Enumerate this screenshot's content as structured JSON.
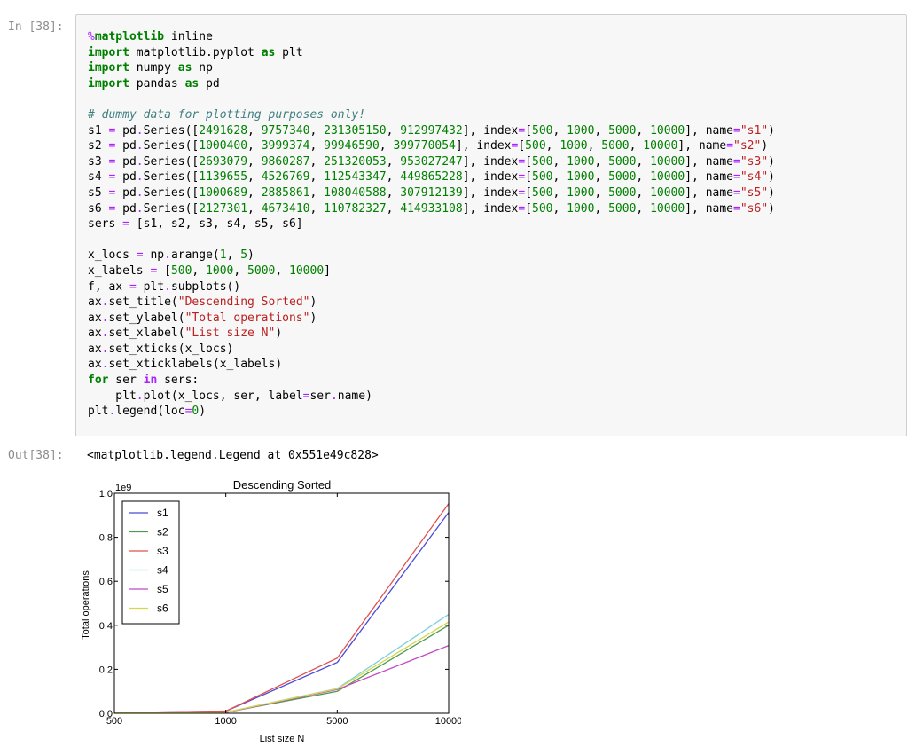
{
  "cell": {
    "in_prompt": "In [38]:",
    "out_prompt": "Out[38]:",
    "output_text": "<matplotlib.legend.Legend at 0x551e49c828>"
  },
  "code_lines": [
    [
      [
        "magic",
        "%"
      ],
      [
        "kw",
        "matplotlib"
      ],
      [
        "",
        " inline"
      ]
    ],
    [
      [
        "kw",
        "import"
      ],
      [
        "",
        " matplotlib.pyplot "
      ],
      [
        "kw",
        "as"
      ],
      [
        "",
        " plt"
      ]
    ],
    [
      [
        "kw",
        "import"
      ],
      [
        "",
        " numpy "
      ],
      [
        "kw",
        "as"
      ],
      [
        "",
        " np"
      ]
    ],
    [
      [
        "kw",
        "import"
      ],
      [
        "",
        " pandas "
      ],
      [
        "kw",
        "as"
      ],
      [
        "",
        " pd"
      ]
    ],
    [],
    [
      [
        "com",
        "# dummy data for plotting purposes only!"
      ]
    ],
    [
      [
        "",
        "s1 "
      ],
      [
        "op",
        "="
      ],
      [
        "",
        " pd"
      ],
      [
        "op",
        "."
      ],
      [
        "",
        "Series(["
      ],
      [
        "num",
        "2491628"
      ],
      [
        "",
        ", "
      ],
      [
        "num",
        "9757340"
      ],
      [
        "",
        ", "
      ],
      [
        "num",
        "231305150"
      ],
      [
        "",
        ", "
      ],
      [
        "num",
        "912997432"
      ],
      [
        "",
        "], index"
      ],
      [
        "op",
        "="
      ],
      [
        "",
        "["
      ],
      [
        "num",
        "500"
      ],
      [
        "",
        ", "
      ],
      [
        "num",
        "1000"
      ],
      [
        "",
        ", "
      ],
      [
        "num",
        "5000"
      ],
      [
        "",
        ", "
      ],
      [
        "num",
        "10000"
      ],
      [
        "",
        "], name"
      ],
      [
        "op",
        "="
      ],
      [
        "str",
        "\"s1\""
      ],
      [
        "",
        ")"
      ]
    ],
    [
      [
        "",
        "s2 "
      ],
      [
        "op",
        "="
      ],
      [
        "",
        " pd"
      ],
      [
        "op",
        "."
      ],
      [
        "",
        "Series(["
      ],
      [
        "num",
        "1000400"
      ],
      [
        "",
        ", "
      ],
      [
        "num",
        "3999374"
      ],
      [
        "",
        ", "
      ],
      [
        "num",
        "99946590"
      ],
      [
        "",
        ", "
      ],
      [
        "num",
        "399770054"
      ],
      [
        "",
        "], index"
      ],
      [
        "op",
        "="
      ],
      [
        "",
        "["
      ],
      [
        "num",
        "500"
      ],
      [
        "",
        ", "
      ],
      [
        "num",
        "1000"
      ],
      [
        "",
        ", "
      ],
      [
        "num",
        "5000"
      ],
      [
        "",
        ", "
      ],
      [
        "num",
        "10000"
      ],
      [
        "",
        "], name"
      ],
      [
        "op",
        "="
      ],
      [
        "str",
        "\"s2\""
      ],
      [
        "",
        ")"
      ]
    ],
    [
      [
        "",
        "s3 "
      ],
      [
        "op",
        "="
      ],
      [
        "",
        " pd"
      ],
      [
        "op",
        "."
      ],
      [
        "",
        "Series(["
      ],
      [
        "num",
        "2693079"
      ],
      [
        "",
        ", "
      ],
      [
        "num",
        "9860287"
      ],
      [
        "",
        ", "
      ],
      [
        "num",
        "251320053"
      ],
      [
        "",
        ", "
      ],
      [
        "num",
        "953027247"
      ],
      [
        "",
        "], index"
      ],
      [
        "op",
        "="
      ],
      [
        "",
        "["
      ],
      [
        "num",
        "500"
      ],
      [
        "",
        ", "
      ],
      [
        "num",
        "1000"
      ],
      [
        "",
        ", "
      ],
      [
        "num",
        "5000"
      ],
      [
        "",
        ", "
      ],
      [
        "num",
        "10000"
      ],
      [
        "",
        "], name"
      ],
      [
        "op",
        "="
      ],
      [
        "str",
        "\"s3\""
      ],
      [
        "",
        ")"
      ]
    ],
    [
      [
        "",
        "s4 "
      ],
      [
        "op",
        "="
      ],
      [
        "",
        " pd"
      ],
      [
        "op",
        "."
      ],
      [
        "",
        "Series(["
      ],
      [
        "num",
        "1139655"
      ],
      [
        "",
        ", "
      ],
      [
        "num",
        "4526769"
      ],
      [
        "",
        ", "
      ],
      [
        "num",
        "112543347"
      ],
      [
        "",
        ", "
      ],
      [
        "num",
        "449865228"
      ],
      [
        "",
        "], index"
      ],
      [
        "op",
        "="
      ],
      [
        "",
        "["
      ],
      [
        "num",
        "500"
      ],
      [
        "",
        ", "
      ],
      [
        "num",
        "1000"
      ],
      [
        "",
        ", "
      ],
      [
        "num",
        "5000"
      ],
      [
        "",
        ", "
      ],
      [
        "num",
        "10000"
      ],
      [
        "",
        "], name"
      ],
      [
        "op",
        "="
      ],
      [
        "str",
        "\"s4\""
      ],
      [
        "",
        ")"
      ]
    ],
    [
      [
        "",
        "s5 "
      ],
      [
        "op",
        "="
      ],
      [
        "",
        " pd"
      ],
      [
        "op",
        "."
      ],
      [
        "",
        "Series(["
      ],
      [
        "num",
        "1000689"
      ],
      [
        "",
        ", "
      ],
      [
        "num",
        "2885861"
      ],
      [
        "",
        ", "
      ],
      [
        "num",
        "108040588"
      ],
      [
        "",
        ", "
      ],
      [
        "num",
        "307912139"
      ],
      [
        "",
        "], index"
      ],
      [
        "op",
        "="
      ],
      [
        "",
        "["
      ],
      [
        "num",
        "500"
      ],
      [
        "",
        ", "
      ],
      [
        "num",
        "1000"
      ],
      [
        "",
        ", "
      ],
      [
        "num",
        "5000"
      ],
      [
        "",
        ", "
      ],
      [
        "num",
        "10000"
      ],
      [
        "",
        "], name"
      ],
      [
        "op",
        "="
      ],
      [
        "str",
        "\"s5\""
      ],
      [
        "",
        ")"
      ]
    ],
    [
      [
        "",
        "s6 "
      ],
      [
        "op",
        "="
      ],
      [
        "",
        " pd"
      ],
      [
        "op",
        "."
      ],
      [
        "",
        "Series(["
      ],
      [
        "num",
        "2127301"
      ],
      [
        "",
        ", "
      ],
      [
        "num",
        "4673410"
      ],
      [
        "",
        ", "
      ],
      [
        "num",
        "110782327"
      ],
      [
        "",
        ", "
      ],
      [
        "num",
        "414933108"
      ],
      [
        "",
        "], index"
      ],
      [
        "op",
        "="
      ],
      [
        "",
        "["
      ],
      [
        "num",
        "500"
      ],
      [
        "",
        ", "
      ],
      [
        "num",
        "1000"
      ],
      [
        "",
        ", "
      ],
      [
        "num",
        "5000"
      ],
      [
        "",
        ", "
      ],
      [
        "num",
        "10000"
      ],
      [
        "",
        "], name"
      ],
      [
        "op",
        "="
      ],
      [
        "str",
        "\"s6\""
      ],
      [
        "",
        ")"
      ]
    ],
    [
      [
        "",
        "sers "
      ],
      [
        "op",
        "="
      ],
      [
        "",
        " [s1, s2, s3, s4, s5, s6]"
      ]
    ],
    [],
    [
      [
        "",
        "x_locs "
      ],
      [
        "op",
        "="
      ],
      [
        "",
        " np"
      ],
      [
        "op",
        "."
      ],
      [
        "",
        "arange("
      ],
      [
        "num",
        "1"
      ],
      [
        "",
        ", "
      ],
      [
        "num",
        "5"
      ],
      [
        "",
        ")"
      ]
    ],
    [
      [
        "",
        "x_labels "
      ],
      [
        "op",
        "="
      ],
      [
        "",
        " ["
      ],
      [
        "num",
        "500"
      ],
      [
        "",
        ", "
      ],
      [
        "num",
        "1000"
      ],
      [
        "",
        ", "
      ],
      [
        "num",
        "5000"
      ],
      [
        "",
        ", "
      ],
      [
        "num",
        "10000"
      ],
      [
        "",
        "]"
      ]
    ],
    [
      [
        "",
        "f, ax "
      ],
      [
        "op",
        "="
      ],
      [
        "",
        " plt"
      ],
      [
        "op",
        "."
      ],
      [
        "",
        "subplots()"
      ]
    ],
    [
      [
        "",
        "ax"
      ],
      [
        "op",
        "."
      ],
      [
        "",
        "set_title("
      ],
      [
        "str",
        "\"Descending Sorted\""
      ],
      [
        "",
        ")"
      ]
    ],
    [
      [
        "",
        "ax"
      ],
      [
        "op",
        "."
      ],
      [
        "",
        "set_ylabel("
      ],
      [
        "str",
        "\"Total operations\""
      ],
      [
        "",
        ")"
      ]
    ],
    [
      [
        "",
        "ax"
      ],
      [
        "op",
        "."
      ],
      [
        "",
        "set_xlabel("
      ],
      [
        "str",
        "\"List size N\""
      ],
      [
        "",
        ")"
      ]
    ],
    [
      [
        "",
        "ax"
      ],
      [
        "op",
        "."
      ],
      [
        "",
        "set_xticks(x_locs)"
      ]
    ],
    [
      [
        "",
        "ax"
      ],
      [
        "op",
        "."
      ],
      [
        "",
        "set_xticklabels(x_labels)"
      ]
    ],
    [
      [
        "kw",
        "for"
      ],
      [
        "",
        " ser "
      ],
      [
        "opw",
        "in"
      ],
      [
        "",
        " sers:"
      ]
    ],
    [
      [
        "",
        "    plt"
      ],
      [
        "op",
        "."
      ],
      [
        "",
        "plot(x_locs, ser, label"
      ],
      [
        "op",
        "="
      ],
      [
        "",
        "ser"
      ],
      [
        "op",
        "."
      ],
      [
        "",
        "name)"
      ]
    ],
    [
      [
        "",
        "plt"
      ],
      [
        "op",
        "."
      ],
      [
        "",
        "legend(loc"
      ],
      [
        "op",
        "="
      ],
      [
        "num",
        "0"
      ],
      [
        "",
        ")"
      ]
    ]
  ],
  "chart_data": {
    "type": "line",
    "title": "Descending Sorted",
    "xlabel": "List size N",
    "ylabel": "Total operations",
    "offset_label": "1e9",
    "categories": [
      "500",
      "1000",
      "5000",
      "10000"
    ],
    "yticks": [
      "0.0",
      "0.2",
      "0.4",
      "0.6",
      "0.8",
      "1.0"
    ],
    "ylim": [
      0,
      1000000000
    ],
    "legend_position": "upper-left",
    "grid": false,
    "series": [
      {
        "name": "s1",
        "color": "#4b4bd8",
        "values": [
          2491628,
          9757340,
          231305150,
          912997432
        ]
      },
      {
        "name": "s2",
        "color": "#4e9a4e",
        "values": [
          1000400,
          3999374,
          99946590,
          399770054
        ]
      },
      {
        "name": "s3",
        "color": "#e05252",
        "values": [
          2693079,
          9860287,
          251320053,
          953027247
        ]
      },
      {
        "name": "s4",
        "color": "#7dd0dc",
        "values": [
          1139655,
          4526769,
          112543347,
          449865228
        ]
      },
      {
        "name": "s5",
        "color": "#c24bc2",
        "values": [
          1000689,
          2885861,
          108040588,
          307912139
        ]
      },
      {
        "name": "s6",
        "color": "#d6d64a",
        "values": [
          2127301,
          4673410,
          110782327,
          414933108
        ]
      }
    ]
  }
}
